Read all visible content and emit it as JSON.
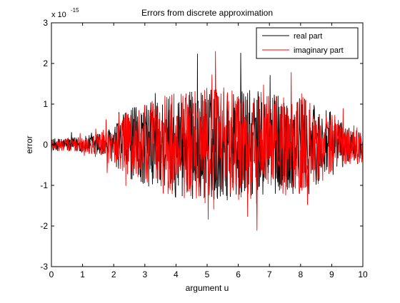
{
  "chart_data": {
    "type": "line",
    "title": "Errors from discrete approximation",
    "xlabel": "argument u",
    "ylabel": "error",
    "y_scale_base": "x 10",
    "y_scale_exponent": "-15",
    "xlim": [
      0,
      10
    ],
    "ylim": [
      -3,
      3
    ],
    "x_ticks": [
      "0",
      "1",
      "2",
      "3",
      "4",
      "5",
      "6",
      "7",
      "8",
      "9",
      "10"
    ],
    "y_ticks": [
      "-3",
      "-2",
      "-1",
      "0",
      "1",
      "2",
      "3"
    ],
    "grid": false,
    "legend_position": "top-right",
    "series": [
      {
        "name": "real part",
        "color": "#000000"
      },
      {
        "name": "imaginary part",
        "color": "#ff0000"
      }
    ],
    "envelope_note_values": {
      "u": [
        0,
        1,
        1.5,
        2,
        2.5,
        3,
        3.5,
        4,
        5,
        6,
        7,
        8,
        9,
        9.5,
        10
      ],
      "real_amplitude": [
        0.15,
        0.2,
        0.3,
        0.45,
        0.9,
        1.0,
        1.2,
        1.3,
        1.4,
        1.4,
        1.3,
        1.2,
        0.8,
        0.45,
        0.35
      ],
      "imag_amplitude": [
        0.15,
        0.2,
        0.3,
        0.5,
        0.9,
        1.0,
        1.2,
        1.3,
        1.45,
        1.4,
        1.3,
        1.2,
        0.8,
        0.5,
        0.45
      ]
    }
  }
}
